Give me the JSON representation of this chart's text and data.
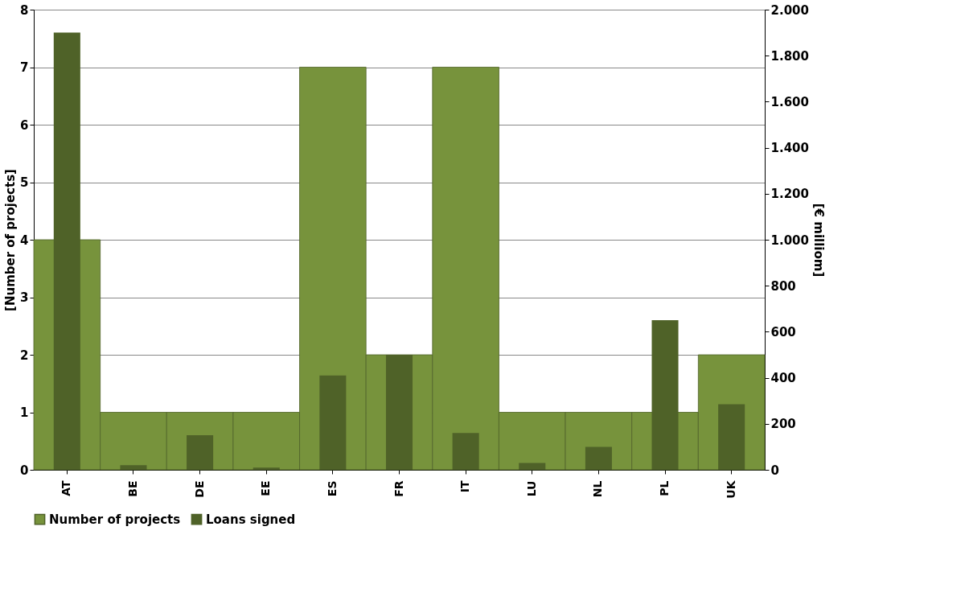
{
  "chart_data": {
    "type": "bar",
    "categories": [
      "AT",
      "BE",
      "DE",
      "EE",
      "ES",
      "FR",
      "IT",
      "LU",
      "NL",
      "PL",
      "UK"
    ],
    "ylabel": "[Number of projects]",
    "y2label": "[€ milliom]",
    "series": [
      {
        "name": "Number of projects",
        "color": "#77933c",
        "values": [
          4,
          1,
          1,
          1,
          7,
          2,
          7,
          1,
          1,
          1,
          2
        ]
      },
      {
        "name": "Loans signed",
        "color": "#4f6228",
        "axis": "y2",
        "values": [
          1900,
          20,
          150,
          10,
          410,
          500,
          160,
          30,
          100,
          650,
          285
        ]
      }
    ],
    "ylim": [
      0,
      8
    ],
    "yticks": [
      0,
      1,
      2,
      3,
      4,
      5,
      6,
      7,
      8
    ],
    "y2lim": [
      0,
      2000
    ],
    "y2ticks": [
      0,
      200,
      400,
      600,
      800,
      {
        "value": 1000,
        "label": "1.000"
      },
      {
        "value": 1200,
        "label": "1.200"
      },
      {
        "value": 1400,
        "label": "1.400"
      },
      {
        "value": 1600,
        "label": "1.600"
      },
      {
        "value": 1800,
        "label": "1.800"
      },
      {
        "value": 2000,
        "label": "2.000"
      }
    ],
    "grid": "y",
    "legend": "bottom"
  }
}
